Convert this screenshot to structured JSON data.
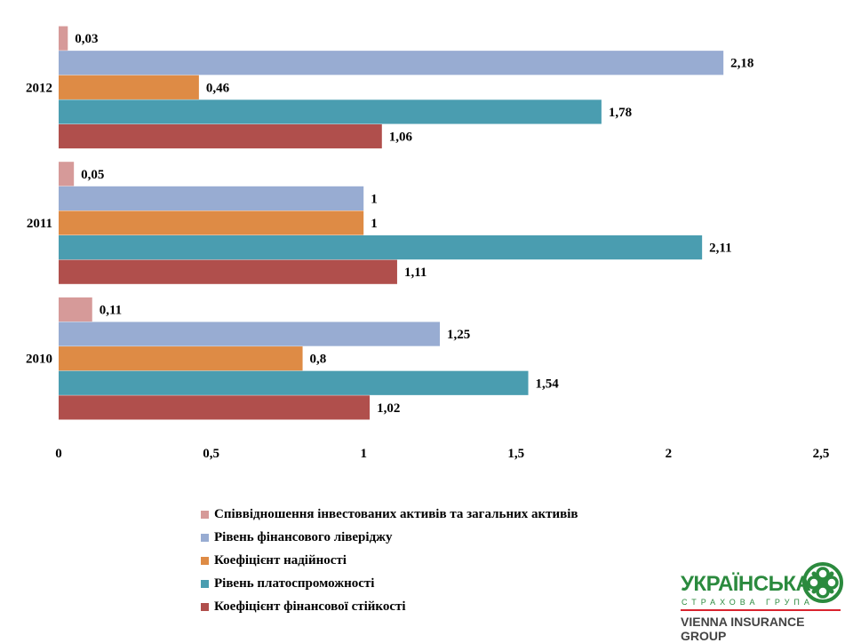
{
  "chart_data": {
    "type": "bar",
    "orientation": "horizontal",
    "categories": [
      "2010",
      "2011",
      "2012"
    ],
    "series": [
      {
        "name": "Коефіцієнт фінансової стійкості",
        "color": "#b04f4c",
        "values": [
          1.02,
          1.11,
          1.06
        ],
        "labels": [
          "1,02",
          "1,11",
          "1,06"
        ]
      },
      {
        "name": "Рівень платоспроможності",
        "color": "#4a9db0",
        "values": [
          1.54,
          2.11,
          1.78
        ],
        "labels": [
          "1,54",
          "2,11",
          "1,78"
        ]
      },
      {
        "name": "Коефіцієнт надійності",
        "color": "#de8b45",
        "values": [
          0.8,
          1,
          0.46
        ],
        "labels": [
          "0,8",
          "1",
          "0,46"
        ]
      },
      {
        "name": "Рівень фінансового ліверіджу",
        "color": "#98acd2",
        "values": [
          1.25,
          1,
          2.18
        ],
        "labels": [
          "1,25",
          "1",
          "2,18"
        ]
      },
      {
        "name": "Співвідношення інвестованих активів та загальних активів",
        "color": "#d69a99",
        "values": [
          0.11,
          0.05,
          0.03
        ],
        "labels": [
          "0,11",
          "0,05",
          "0,03"
        ]
      }
    ],
    "xlim": [
      0,
      2.5
    ],
    "xticks": [
      0,
      0.5,
      1,
      1.5,
      2,
      2.5
    ],
    "xtick_labels": [
      "0",
      "0,5",
      "1",
      "1,5",
      "2",
      "2,5"
    ],
    "grid": false,
    "legend_position": "bottom",
    "title": "",
    "xlabel": "",
    "ylabel": ""
  },
  "legend": {
    "items": [
      {
        "label": "Співвідношення інвестованих активів та загальних активів",
        "color": "#d69a99"
      },
      {
        "label": "Рівень фінансового ліверіджу",
        "color": "#98acd2"
      },
      {
        "label": "Коефіцієнт надійності",
        "color": "#de8b45"
      },
      {
        "label": "Рівень платоспроможності",
        "color": "#4a9db0"
      },
      {
        "label": "Коефіцієнт фінансової стійкості",
        "color": "#b04f4c"
      }
    ]
  },
  "logo": {
    "title": "УКРАЇНСЬКА",
    "subtitle": "СТРАХОВА ГРУПА",
    "group": "VIENNA INSURANCE GROUP",
    "color": "#2b8a3e",
    "line_color": "#d9232e",
    "emblem_icon": "knot-emblem-icon"
  }
}
